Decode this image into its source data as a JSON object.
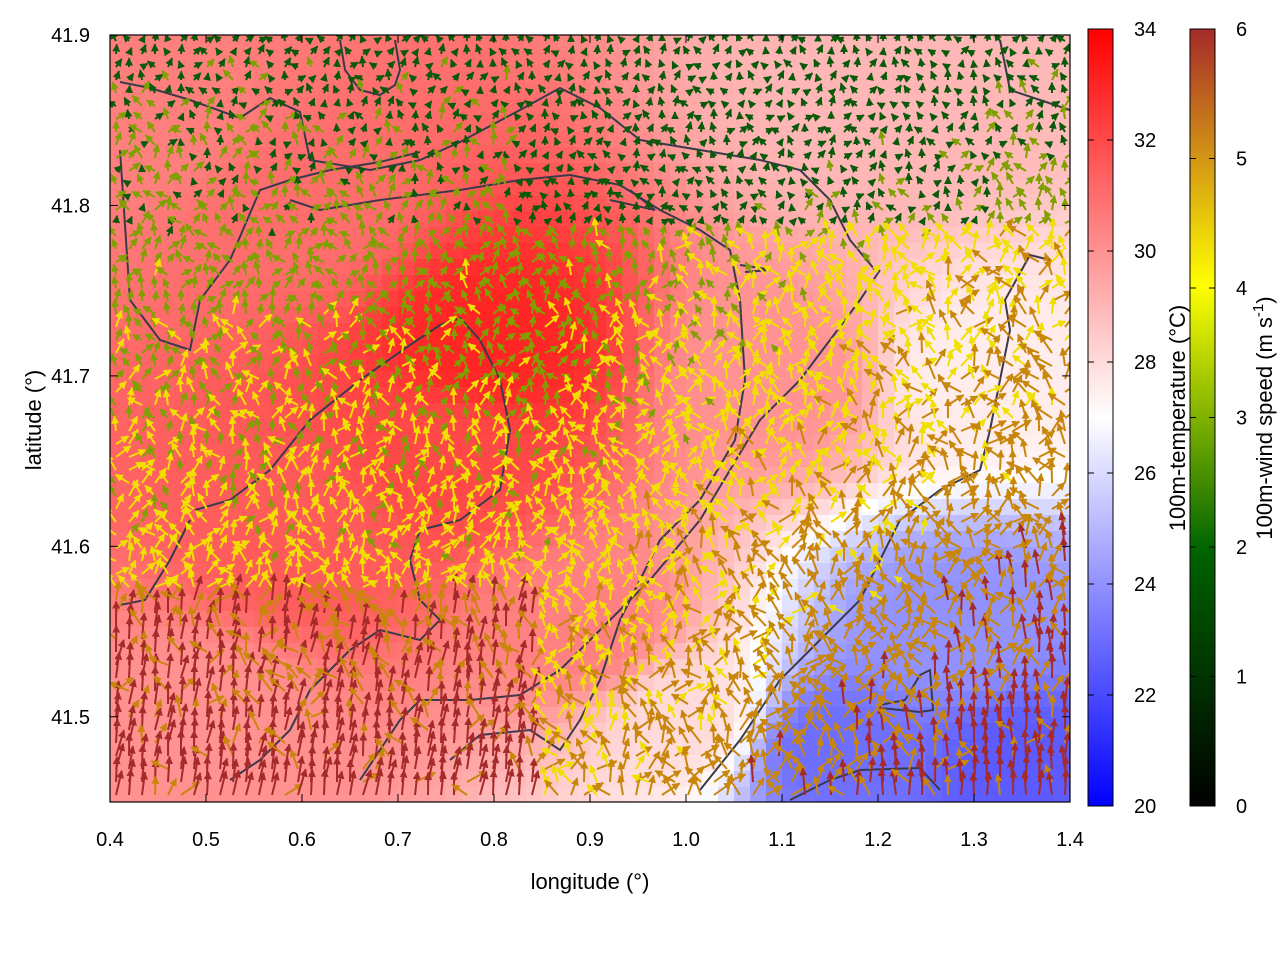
{
  "chart_data": {
    "type": "heatmap",
    "subtype": "temperature field with colored wind vectors and contour lines",
    "xlabel": "longitude (°)",
    "ylabel": "latitude (°)",
    "xlim": [
      0.4,
      1.4
    ],
    "ylim": [
      41.45,
      41.9
    ],
    "xticks": [
      "0.4",
      "0.5",
      "0.6",
      "0.7",
      "0.8",
      "0.9",
      "1.0",
      "1.1",
      "1.2",
      "1.3",
      "1.4"
    ],
    "yticks": [
      "41.5",
      "41.6",
      "41.7",
      "41.8",
      "41.9"
    ],
    "grid": false,
    "temperature_colorbar": {
      "label": "100m-temperature (°C)",
      "range": [
        20,
        34
      ],
      "ticks": [
        "20",
        "22",
        "24",
        "26",
        "28",
        "30",
        "32",
        "34"
      ],
      "colors": [
        "#0000ff",
        "#ffffff",
        "#ff0000"
      ]
    },
    "wind_colorbar": {
      "label_main": "100m-wind speed (m s",
      "label_sup": "-1",
      "label_end": ")",
      "range": [
        0,
        6
      ],
      "ticks": [
        "0",
        "1",
        "2",
        "3",
        "4",
        "5",
        "6"
      ],
      "colors": [
        "#000000",
        "#006400",
        "#ffff00",
        "#a52a2a"
      ]
    },
    "temperature_regions": [
      {
        "lon": 0.45,
        "lat": 41.85,
        "temp": 30.5
      },
      {
        "lon": 0.6,
        "lat": 41.8,
        "temp": 31
      },
      {
        "lon": 0.8,
        "lat": 41.72,
        "temp": 33
      },
      {
        "lon": 0.75,
        "lat": 41.65,
        "temp": 32
      },
      {
        "lon": 0.6,
        "lat": 41.6,
        "temp": 31.5
      },
      {
        "lon": 0.5,
        "lat": 41.5,
        "temp": 30
      },
      {
        "lon": 0.9,
        "lat": 41.55,
        "temp": 30.5
      },
      {
        "lon": 1.0,
        "lat": 41.5,
        "temp": 28
      },
      {
        "lon": 1.1,
        "lat": 41.7,
        "temp": 30
      },
      {
        "lon": 1.2,
        "lat": 41.85,
        "temp": 29
      },
      {
        "lon": 1.3,
        "lat": 41.7,
        "temp": 27.5
      },
      {
        "lon": 1.28,
        "lat": 41.55,
        "temp": 24
      },
      {
        "lon": 1.15,
        "lat": 41.48,
        "temp": 23
      },
      {
        "lon": 1.35,
        "lat": 41.47,
        "temp": 22.5
      }
    ]
  }
}
